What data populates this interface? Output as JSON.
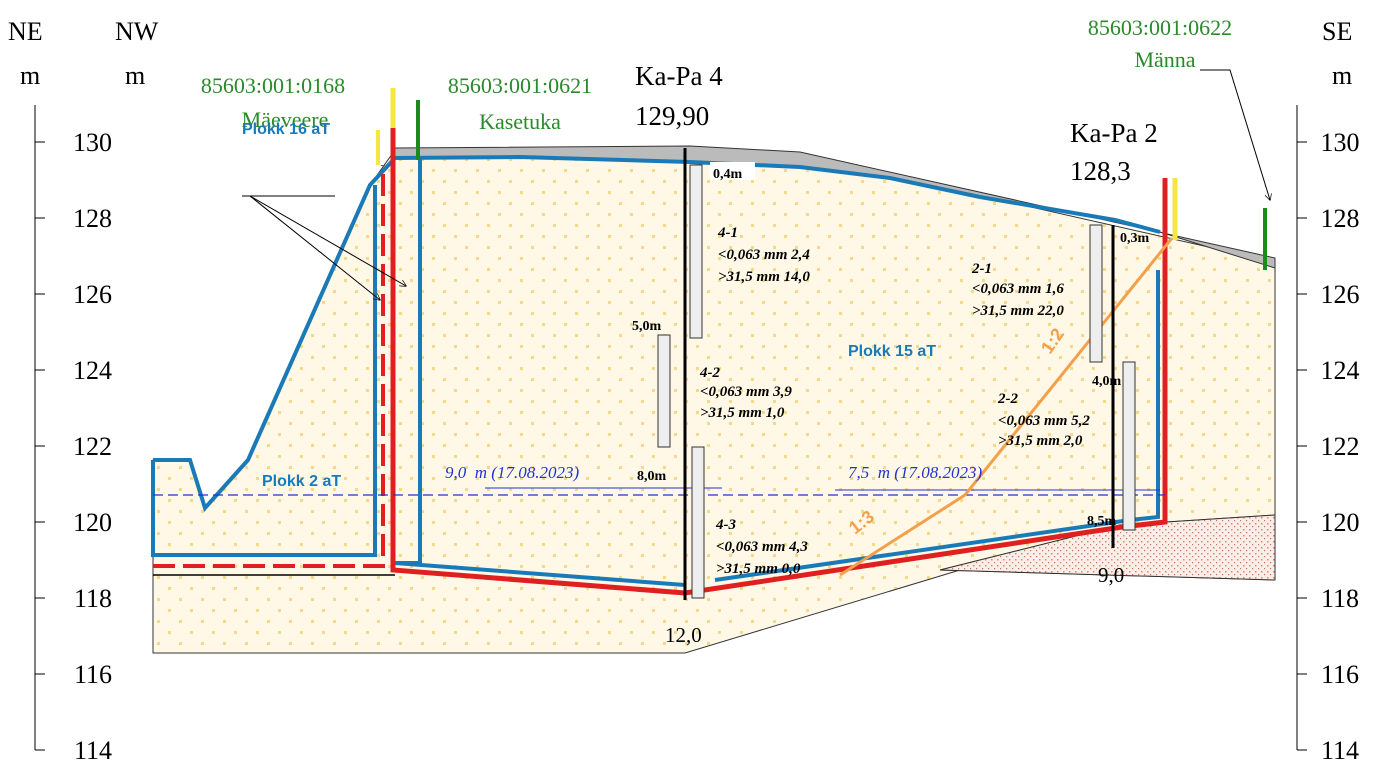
{
  "axes": {
    "left": {
      "direction": "NE",
      "unit": "m",
      "ticks": [
        130,
        128,
        126,
        124,
        122,
        120,
        118,
        116,
        114
      ]
    },
    "left_inner": {
      "direction": "NW",
      "unit": "m"
    },
    "right": {
      "direction": "SE",
      "unit": "m",
      "ticks": [
        130,
        128,
        126,
        124,
        122,
        120,
        118,
        116,
        114
      ]
    }
  },
  "parcels": [
    {
      "id": "85603:001:0168",
      "name": "Mäeveere"
    },
    {
      "id": "85603:001:0621",
      "name": "Kasetuka"
    },
    {
      "id": "85603:001:0622",
      "name": "Männa"
    }
  ],
  "boreholes": [
    {
      "name": "Ka-Pa 4",
      "elevation": "129,90",
      "depths": [
        "0,4m",
        "5,0m",
        "8,0m",
        "12,0"
      ],
      "samples": [
        {
          "id": "4-1",
          "fine": "<0,063 mm 2,4",
          "coarse": ">31,5 mm 14,0"
        },
        {
          "id": "4-2",
          "fine": "<0,063 mm 3,9",
          "coarse": ">31,5 mm 1,0"
        },
        {
          "id": "4-3",
          "fine": "<0,063 mm 4,3",
          "coarse": ">31,5 mm 0,0"
        }
      ]
    },
    {
      "name": "Ka-Pa 2",
      "elevation": "128,3",
      "depths": [
        "0,3m",
        "4,0m",
        "8,5m",
        "9,0"
      ],
      "samples": [
        {
          "id": "2-1",
          "fine": "<0,063 mm 1,6",
          "coarse": ">31,5 mm 22,0"
        },
        {
          "id": "2-2",
          "fine": "<0,063 mm 5,2",
          "coarse": ">31,5 mm 2,0"
        }
      ]
    }
  ],
  "blocks": [
    "Plokk 16 aT",
    "Plokk 15 aT",
    "Plokk 2 aT"
  ],
  "water_levels": [
    "9,0  m (17.08.2023)",
    "7,5  m (17.08.2023)"
  ],
  "slopes": [
    "1:2",
    "1:3"
  ]
}
